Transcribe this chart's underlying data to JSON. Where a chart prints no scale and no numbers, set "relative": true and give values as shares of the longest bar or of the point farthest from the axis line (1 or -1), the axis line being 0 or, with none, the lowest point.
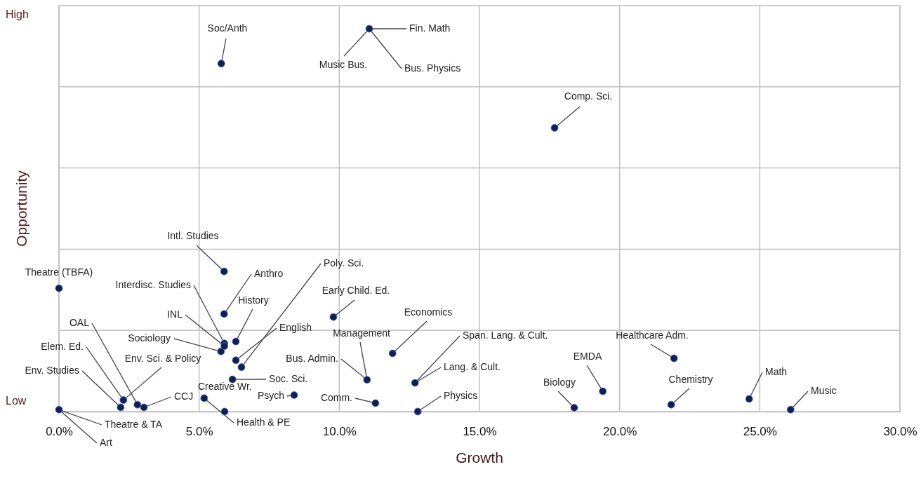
{
  "chart_data": {
    "type": "scatter",
    "xlabel": "Growth",
    "ylabel": "Opportunity",
    "relative": true,
    "xlim": [
      0,
      30
    ],
    "xticks": [
      {
        "value": 0,
        "label": "0.0%"
      },
      {
        "value": 5,
        "label": "5.0%"
      },
      {
        "value": 10,
        "label": "10.0%"
      },
      {
        "value": 15,
        "label": "15.0%"
      },
      {
        "value": 20,
        "label": "20.0%"
      },
      {
        "value": 25,
        "label": "25.0%"
      },
      {
        "value": 30,
        "label": "30.0%"
      }
    ],
    "grid": true,
    "marker": "circle",
    "series": [
      {
        "color": "#0d1f5c",
        "x": [
          5.79,
          11.07,
          17.68,
          5.89,
          0,
          5.89,
          5.9,
          5.9,
          5.78,
          6.31,
          6.31,
          6.51,
          6.19,
          8.39,
          5.91,
          5.18,
          3.03,
          2.8,
          2.3,
          2.2,
          0,
          9.79,
          11.9,
          10.99,
          12.7,
          11.29,
          12.8,
          18.38,
          19.4,
          21.94,
          21.84,
          24.62,
          26.1
        ],
        "values": [
          0.909,
          1,
          0.741,
          0.366,
          0.322,
          0.255,
          0.178,
          0.171,
          0.157,
          0.183,
          0.134,
          0.116,
          0.084,
          0.043,
          0,
          0.035,
          0.011,
          0.018,
          0.03,
          0.011,
          0.005,
          0.247,
          0.152,
          0.083,
          0.075,
          0.022,
          0,
          0.01,
          0.053,
          0.139,
          0.018,
          0.033,
          0.005
        ]
      }
    ],
    "annotations": [
      "High",
      "Low",
      {
        "text": "Soc/Anth",
        "x": 5.79,
        "y": 0.909
      },
      {
        "text": "Fin. Math",
        "x": 11.07,
        "y": 1
      },
      {
        "text": "Music Bus.",
        "x": 11.07,
        "y": 1
      },
      {
        "text": "Bus. Physics",
        "x": 11.07,
        "y": 1
      },
      {
        "text": "Comp. Sci.",
        "x": 17.68,
        "y": 0.741
      },
      {
        "text": "Intl. Studies",
        "x": 5.89,
        "y": 0.366
      },
      {
        "text": "Theatre (TBFA)",
        "x": 0,
        "y": 0.322
      },
      {
        "text": "Anthro",
        "x": 5.89,
        "y": 0.255
      },
      {
        "text": "Interdisc. Studies",
        "x": 5.9,
        "y": 0.178
      },
      {
        "text": "INL",
        "x": 5.9,
        "y": 0.171
      },
      {
        "text": "Sociology",
        "x": 5.78,
        "y": 0.157
      },
      {
        "text": "History",
        "x": 6.31,
        "y": 0.183
      },
      {
        "text": "English",
        "x": 6.31,
        "y": 0.134
      },
      {
        "text": "Poly. Sci.",
        "x": 6.51,
        "y": 0.116
      },
      {
        "text": "Soc. Sci.",
        "x": 6.19,
        "y": 0.084
      },
      {
        "text": "Psych",
        "x": 8.39,
        "y": 0.043
      },
      {
        "text": "Creative Wr.",
        "x": 5.91,
        "y": 0
      },
      {
        "text": "Health & PE",
        "x": 5.18,
        "y": 0.035
      },
      {
        "text": "CCJ",
        "x": 3.03,
        "y": 0.011
      },
      {
        "text": "OAL",
        "x": 2.8,
        "y": 0.018
      },
      {
        "text": "Elem. Ed.",
        "x": 2.3,
        "y": 0.03
      },
      {
        "text": "Env. Sci. & Policy",
        "x": 2.3,
        "y": 0.03
      },
      {
        "text": "Env. Studies",
        "x": 2.2,
        "y": 0.011
      },
      {
        "text": "Theatre & TA",
        "x": 0,
        "y": 0.005
      },
      {
        "text": "Art",
        "x": 0,
        "y": 0.005
      },
      {
        "text": "Early Child. Ed.",
        "x": 9.79,
        "y": 0.247
      },
      {
        "text": "Economics",
        "x": 11.9,
        "y": 0.152
      },
      {
        "text": "Management",
        "x": 10.99,
        "y": 0.083
      },
      {
        "text": "Bus. Admin.",
        "x": 10.99,
        "y": 0.083
      },
      {
        "text": "Span. Lang. & Cult.",
        "x": 12.7,
        "y": 0.075
      },
      {
        "text": "Lang. & Cult.",
        "x": 12.7,
        "y": 0.075
      },
      {
        "text": "Comm.",
        "x": 11.29,
        "y": 0.022
      },
      {
        "text": "Physics",
        "x": 12.8,
        "y": 0
      },
      {
        "text": "Biology",
        "x": 18.38,
        "y": 0.01
      },
      {
        "text": "EMDA",
        "x": 19.4,
        "y": 0.053
      },
      {
        "text": "Healthcare Adm.",
        "x": 21.94,
        "y": 0.139
      },
      {
        "text": "Chemistry",
        "x": 21.84,
        "y": 0.018
      },
      {
        "text": "Math",
        "x": 24.62,
        "y": 0.033
      },
      {
        "text": "Music",
        "x": 26.1,
        "y": 0.005
      }
    ]
  }
}
